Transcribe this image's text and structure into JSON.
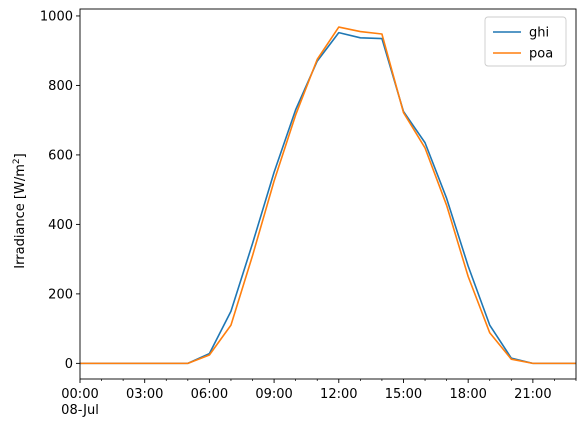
{
  "chart_data": {
    "type": "line",
    "xlabel": "",
    "ylabel": "Irradiance [W/m",
    "ylabel_sup": "2",
    "ylabel_close": "]",
    "x_ticks": [
      "00:00",
      "03:00",
      "06:00",
      "09:00",
      "12:00",
      "15:00",
      "18:00",
      "21:00"
    ],
    "x_tick_values": [
      0,
      3,
      6,
      9,
      12,
      15,
      18,
      21
    ],
    "x_sub_label": "08-Jul",
    "xlim": [
      0,
      23
    ],
    "ylim": [
      -45,
      1020
    ],
    "y_ticks": [
      0,
      200,
      400,
      600,
      800,
      1000
    ],
    "x": [
      0,
      1,
      2,
      3,
      4,
      5,
      6,
      7,
      8,
      9,
      10,
      11,
      12,
      13,
      14,
      15,
      16,
      17,
      18,
      19,
      20,
      21,
      22,
      23
    ],
    "series": [
      {
        "name": "ghi",
        "color": "#1f77b4",
        "values": [
          0,
          0,
          0,
          0,
          0,
          0,
          28,
          150,
          345,
          550,
          730,
          870,
          952,
          937,
          935,
          725,
          635,
          475,
          280,
          110,
          15,
          0,
          0,
          0
        ]
      },
      {
        "name": "poa",
        "color": "#ff7f0e",
        "values": [
          0,
          0,
          0,
          0,
          0,
          0,
          24,
          110,
          310,
          525,
          715,
          875,
          968,
          955,
          948,
          722,
          620,
          455,
          250,
          88,
          12,
          0,
          0,
          0
        ]
      }
    ],
    "legend_position": "top-right",
    "grid": false
  }
}
